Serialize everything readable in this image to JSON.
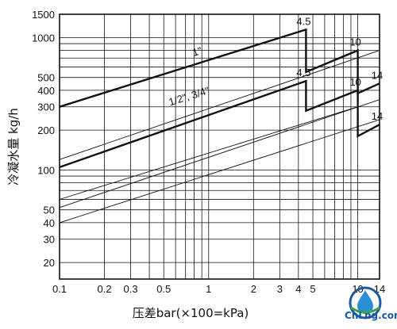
{
  "chart_data": {
    "type": "line",
    "title": "",
    "xlabel": "压差bar(×100=kPa)",
    "ylabel": "冷凝水量 kg/h",
    "x_scale": "log",
    "y_scale": "log",
    "xlim": [
      0.1,
      14
    ],
    "ylim": [
      15,
      1500
    ],
    "grid": true,
    "x_ticks": [
      {
        "value": 0.1,
        "label": "0.1"
      },
      {
        "value": 0.2,
        "label": "0.2"
      },
      {
        "value": 0.3,
        "label": "0.3"
      },
      {
        "value": 0.5,
        "label": "0.5"
      },
      {
        "value": 1,
        "label": "1"
      },
      {
        "value": 2,
        "label": "2"
      },
      {
        "value": 3,
        "label": "3"
      },
      {
        "value": 4,
        "label": "4"
      },
      {
        "value": 5,
        "label": "5"
      },
      {
        "value": 10,
        "label": "10"
      },
      {
        "value": 14,
        "label": "14"
      }
    ],
    "y_ticks": [
      {
        "value": 20,
        "label": "20"
      },
      {
        "value": 30,
        "label": "30"
      },
      {
        "value": 40,
        "label": "40"
      },
      {
        "value": 50,
        "label": "50"
      },
      {
        "value": 100,
        "label": "100"
      },
      {
        "value": 200,
        "label": "200"
      },
      {
        "value": 300,
        "label": "300"
      },
      {
        "value": 400,
        "label": "400"
      },
      {
        "value": 500,
        "label": "500"
      },
      {
        "value": 1000,
        "label": "1000"
      },
      {
        "value": 1500,
        "label": "1500"
      }
    ],
    "series": [
      {
        "name": "1\"",
        "style": "bold",
        "points": [
          [
            0.1,
            300
          ],
          [
            4.5,
            1150
          ],
          [
            4.5,
            550
          ],
          [
            10,
            800
          ],
          [
            10,
            380
          ],
          [
            14,
            450
          ]
        ],
        "end_labels": [
          {
            "text": "4.5",
            "x": 4.5,
            "y": 1150
          },
          {
            "text": "10",
            "x": 10,
            "y": 800
          },
          {
            "text": "14",
            "x": 14,
            "y": 450
          }
        ]
      },
      {
        "name": "1/2\", 3/4\"",
        "style": "bold",
        "points": [
          [
            0.1,
            105
          ],
          [
            4.5,
            470
          ],
          [
            4.5,
            280
          ],
          [
            10,
            400
          ],
          [
            10,
            180
          ],
          [
            14,
            220
          ]
        ],
        "end_labels": [
          {
            "text": "4.5",
            "x": 4.5,
            "y": 470
          },
          {
            "text": "10",
            "x": 10,
            "y": 400
          },
          {
            "text": "14",
            "x": 14,
            "y": 220
          }
        ]
      },
      {
        "name": "",
        "style": "thin",
        "points": [
          [
            0.1,
            120
          ],
          [
            14,
            800
          ]
        ]
      },
      {
        "name": "",
        "style": "thin",
        "points": [
          [
            0.1,
            60
          ],
          [
            10,
            300
          ]
        ]
      },
      {
        "name": "",
        "style": "thin",
        "points": [
          [
            0.1,
            52
          ],
          [
            14,
            340
          ]
        ]
      },
      {
        "name": "",
        "style": "thin",
        "points": [
          [
            0.1,
            40
          ],
          [
            14,
            240
          ]
        ]
      }
    ],
    "curve_labels": [
      {
        "text": "1\"",
        "x": 0.85,
        "y": 740
      },
      {
        "text": "1/2\", 3/4\"",
        "x": 0.75,
        "y": 340
      }
    ]
  },
  "logo": {
    "text": "CnLng.com",
    "icon": "droplet-logo-icon",
    "accent": "#1a5aa0"
  }
}
